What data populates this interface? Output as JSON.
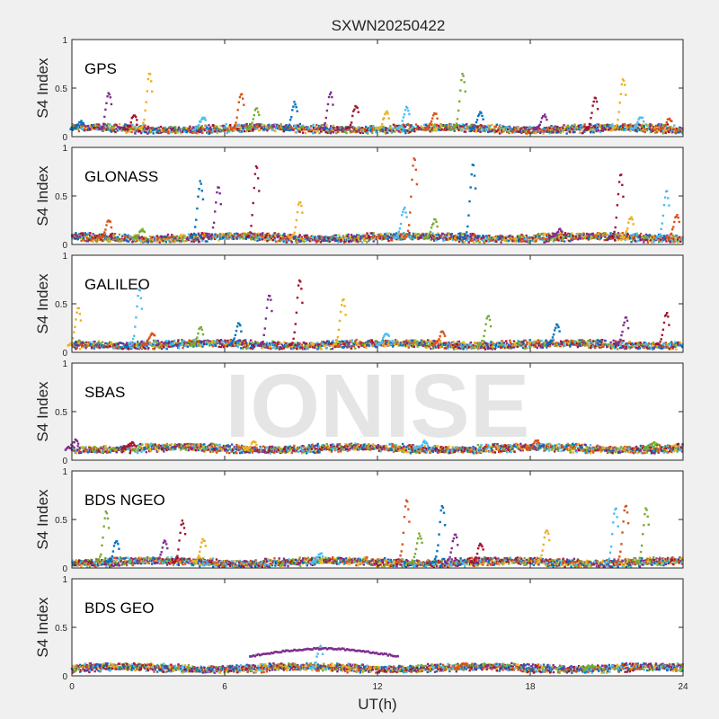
{
  "chart_data": {
    "type": "scatter",
    "title": "SXWN20250422",
    "xlabel": "UT(h)",
    "xlim": [
      0,
      24
    ],
    "xticks": [
      "0",
      "6",
      "12",
      "18",
      "24"
    ],
    "watermark": "IONISE",
    "series_colors": [
      "#0072bd",
      "#d95319",
      "#edb120",
      "#7e2f8e",
      "#77ac30",
      "#4dbeee",
      "#a2142f"
    ],
    "panels": [
      {
        "label": "GPS",
        "ylabel": "S4 Index",
        "ylim": [
          0,
          1
        ],
        "yticks": [
          "0",
          "0.5",
          "1"
        ],
        "baseline": 0.08,
        "spikes": [
          [
            0.4,
            0.15
          ],
          [
            1.5,
            0.45
          ],
          [
            2.5,
            0.22
          ],
          [
            3.1,
            0.65
          ],
          [
            5.2,
            0.2
          ],
          [
            6.7,
            0.45
          ],
          [
            7.3,
            0.3
          ],
          [
            8.8,
            0.35
          ],
          [
            10.2,
            0.45
          ],
          [
            11.2,
            0.32
          ],
          [
            12.4,
            0.25
          ],
          [
            13.2,
            0.3
          ],
          [
            14.3,
            0.25
          ],
          [
            15.4,
            0.65
          ],
          [
            16.1,
            0.25
          ],
          [
            18.6,
            0.22
          ],
          [
            20.6,
            0.4
          ],
          [
            21.7,
            0.6
          ],
          [
            22.4,
            0.2
          ],
          [
            23.5,
            0.18
          ]
        ]
      },
      {
        "label": "GLONASS",
        "ylabel": "S4 Index",
        "ylim": [
          0,
          1
        ],
        "yticks": [
          "0",
          "0.5",
          "1"
        ],
        "baseline": 0.07,
        "spikes": [
          [
            1.5,
            0.25
          ],
          [
            2.8,
            0.15
          ],
          [
            5.1,
            0.65
          ],
          [
            5.8,
            0.6
          ],
          [
            7.3,
            0.8
          ],
          [
            9.0,
            0.45
          ],
          [
            13.1,
            0.38
          ],
          [
            13.5,
            0.9
          ],
          [
            14.3,
            0.25
          ],
          [
            15.8,
            0.82
          ],
          [
            19.2,
            0.15
          ],
          [
            21.6,
            0.72
          ],
          [
            22.0,
            0.28
          ],
          [
            23.4,
            0.55
          ],
          [
            23.8,
            0.3
          ]
        ]
      },
      {
        "label": "GALILEO",
        "ylabel": "S4 Index",
        "ylim": [
          0,
          1
        ],
        "yticks": [
          "0",
          "0.5",
          "1"
        ],
        "baseline": 0.08,
        "spikes": [
          [
            0.3,
            0.45
          ],
          [
            2.7,
            0.65
          ],
          [
            3.2,
            0.2
          ],
          [
            5.1,
            0.25
          ],
          [
            6.6,
            0.3
          ],
          [
            7.8,
            0.6
          ],
          [
            9.0,
            0.75
          ],
          [
            10.7,
            0.55
          ],
          [
            12.4,
            0.2
          ],
          [
            14.6,
            0.22
          ],
          [
            16.4,
            0.38
          ],
          [
            19.1,
            0.28
          ],
          [
            21.8,
            0.35
          ],
          [
            23.4,
            0.4
          ]
        ]
      },
      {
        "label": "SBAS",
        "ylabel": "S4 Index",
        "ylim": [
          0,
          1
        ],
        "yticks": [
          "0",
          "0.5",
          "1"
        ],
        "baseline": 0.12,
        "spikes": [
          [
            0.2,
            0.2
          ],
          [
            2.4,
            0.18
          ],
          [
            7.2,
            0.18
          ],
          [
            13.9,
            0.19
          ],
          [
            18.3,
            0.2
          ],
          [
            22.9,
            0.18
          ]
        ]
      },
      {
        "label": "BDS NGEO",
        "ylabel": "S4 Index",
        "ylim": [
          0,
          1
        ],
        "yticks": [
          "0",
          "0.5",
          "1"
        ],
        "baseline": 0.06,
        "spikes": [
          [
            1.4,
            0.58
          ],
          [
            1.8,
            0.28
          ],
          [
            3.7,
            0.28
          ],
          [
            4.4,
            0.48
          ],
          [
            5.2,
            0.3
          ],
          [
            9.8,
            0.15
          ],
          [
            13.2,
            0.7
          ],
          [
            13.7,
            0.35
          ],
          [
            14.6,
            0.65
          ],
          [
            15.1,
            0.35
          ],
          [
            16.1,
            0.25
          ],
          [
            18.7,
            0.4
          ],
          [
            21.4,
            0.62
          ],
          [
            21.8,
            0.65
          ],
          [
            22.6,
            0.62
          ]
        ]
      },
      {
        "label": "BDS GEO",
        "ylabel": "S4 Index",
        "ylim": [
          0,
          1
        ],
        "yticks": [
          "0",
          "0.5",
          "1"
        ],
        "baseline": 0.08,
        "spikes": [
          [
            9.8,
            0.3
          ],
          [
            15.5,
            0.13
          ],
          [
            20.5,
            0.1
          ]
        ]
      }
    ]
  }
}
